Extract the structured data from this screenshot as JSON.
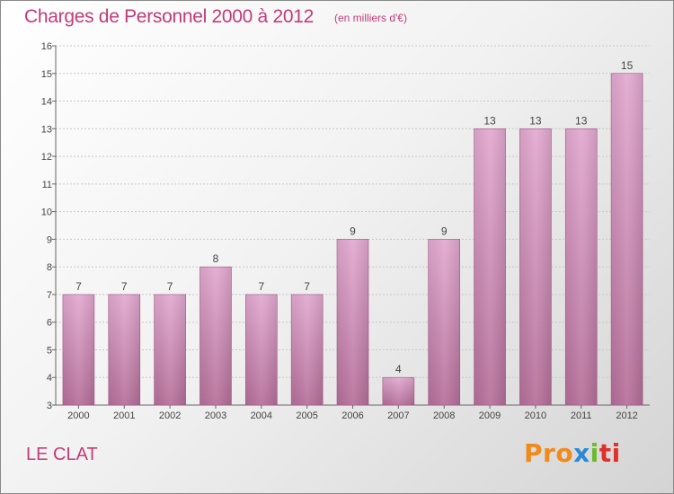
{
  "title": "Charges de Personnel 2000 à 2012",
  "subtitle": "(en milliers d'€)",
  "location": "LE CLAT",
  "logo": {
    "p1": "Pro",
    "p2": "x",
    "p3": "i",
    "p4": "ti"
  },
  "colors": {
    "bar_top": "#e2a9d0",
    "bar_bottom": "#b56f99",
    "accent": "#c23c78"
  },
  "chart_data": {
    "type": "bar",
    "title": "Charges de Personnel 2000 à 2012",
    "subtitle": "(en milliers d'€)",
    "categories": [
      "2000",
      "2001",
      "2002",
      "2003",
      "2004",
      "2005",
      "2006",
      "2007",
      "2008",
      "2009",
      "2010",
      "2011",
      "2012"
    ],
    "values": [
      7,
      7,
      7,
      8,
      7,
      7,
      9,
      4,
      9,
      13,
      13,
      13,
      15
    ],
    "ylim": [
      3,
      16
    ],
    "yticks": [
      3,
      4,
      5,
      6,
      7,
      8,
      9,
      10,
      11,
      12,
      13,
      14,
      15,
      16
    ],
    "grid": true,
    "legend": "none"
  }
}
